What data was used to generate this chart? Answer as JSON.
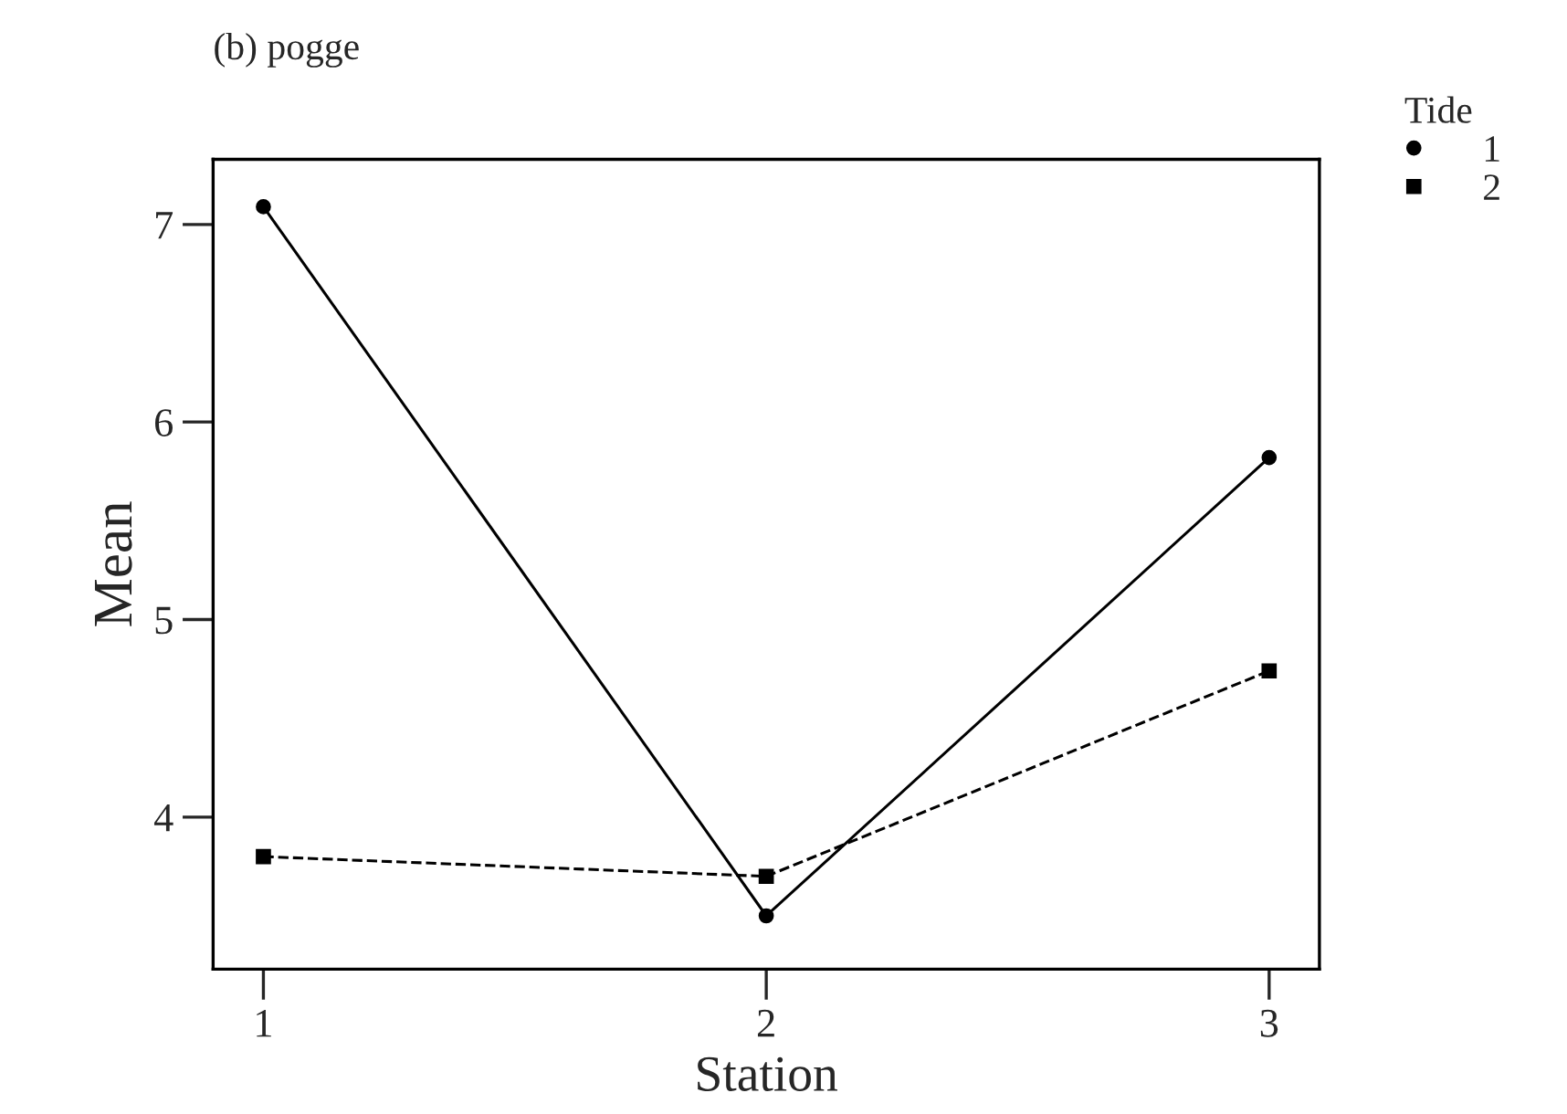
{
  "chart_data": {
    "type": "line",
    "title": "(b) pogge",
    "xlabel": "Station",
    "ylabel": "Mean",
    "legend_title": "Tide",
    "legend": "top right",
    "x": [
      1,
      2,
      3
    ],
    "series": [
      {
        "name": "1",
        "color": "#000000",
        "values": [
          7.09,
          3.5,
          5.82
        ],
        "marker": "circle",
        "line_style": "solid"
      },
      {
        "name": "2",
        "color": "#000000",
        "values": [
          3.8,
          3.7,
          4.74
        ],
        "marker": "square",
        "line_style": "dashed"
      }
    ],
    "xlim": [
      0.9,
      3.1
    ],
    "xticks": [
      1,
      2,
      3
    ],
    "ylim": [
      3.23,
      7.33
    ],
    "yticks": [
      4,
      5,
      6,
      7
    ],
    "grid": false
  }
}
